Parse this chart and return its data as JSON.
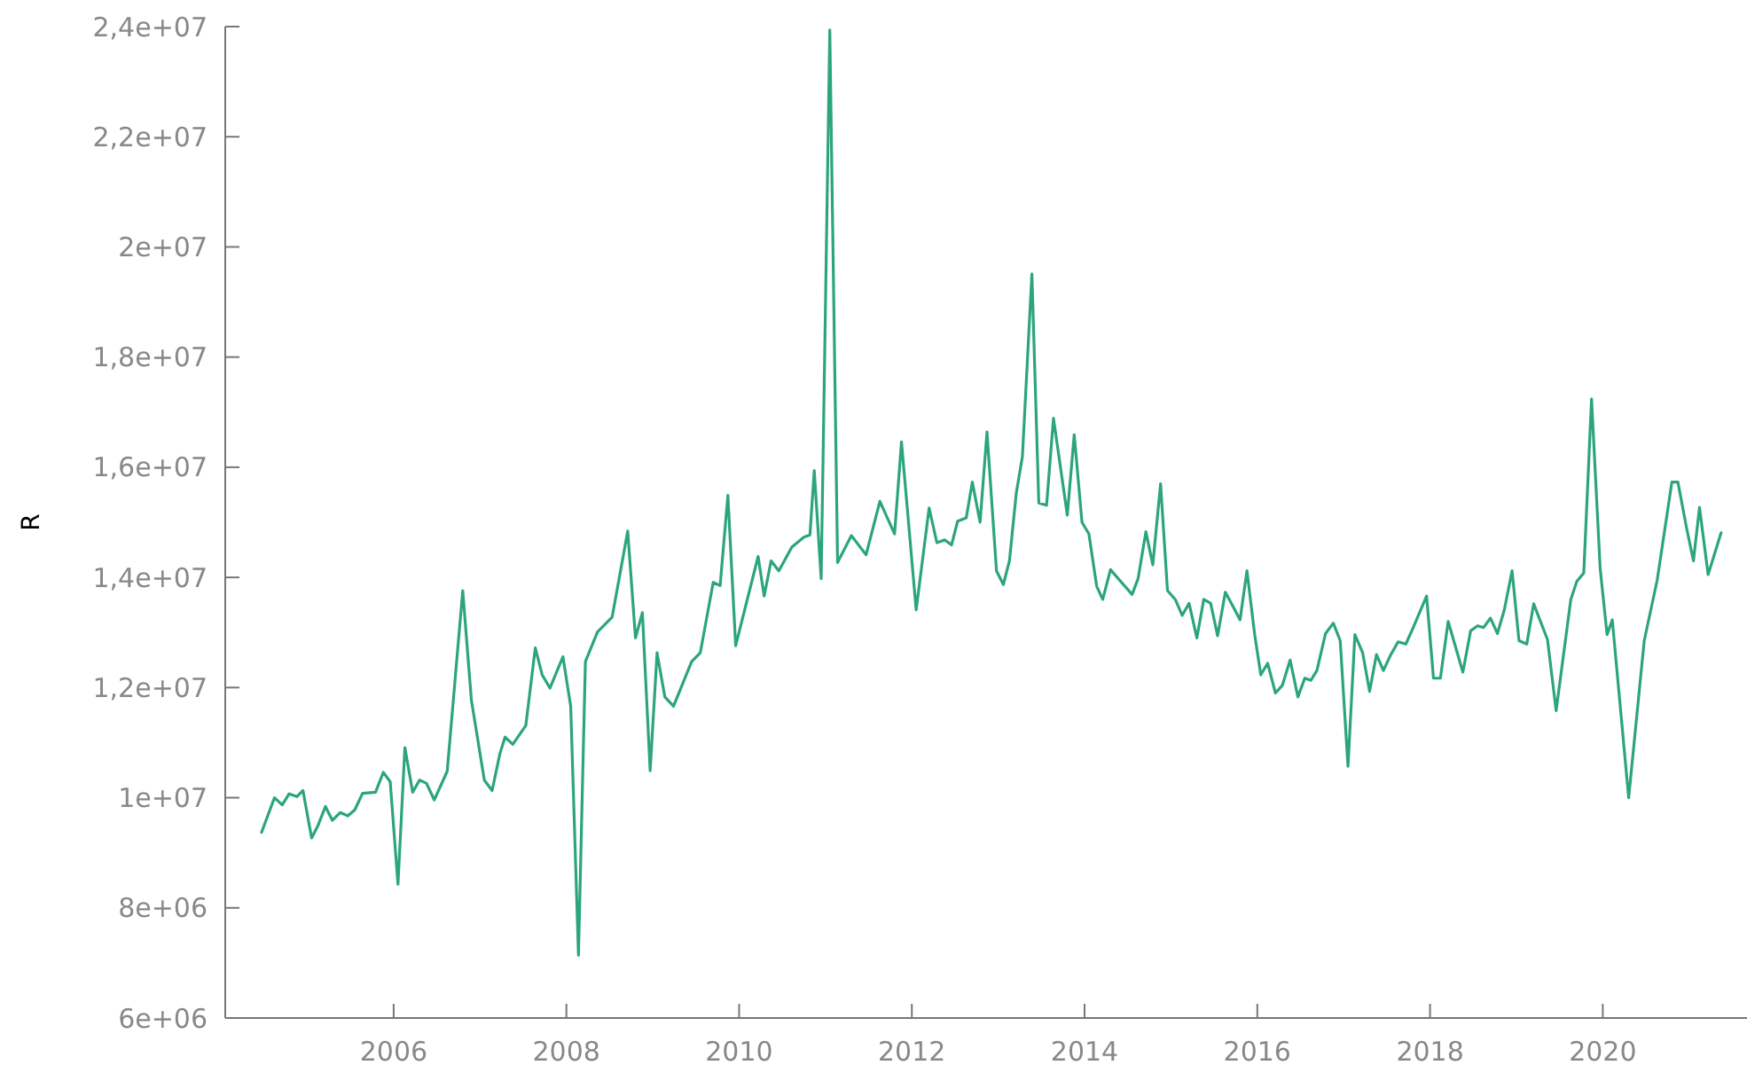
{
  "chart_data": {
    "type": "line",
    "ylabel": "R",
    "x": [
      2004.47,
      2004.62,
      2004.71,
      2004.79,
      2004.88,
      2004.95,
      2005.05,
      2005.12,
      2005.21,
      2005.29,
      2005.38,
      2005.47,
      2005.55,
      2005.64,
      2005.79,
      2005.88,
      2005.96,
      2006.05,
      2006.13,
      2006.22,
      2006.3,
      2006.38,
      2006.47,
      2006.62,
      2006.8,
      2006.9,
      2007.05,
      2007.14,
      2007.23,
      2007.29,
      2007.38,
      2007.53,
      2007.64,
      2007.72,
      2007.81,
      2007.96,
      2008.05,
      2008.14,
      2008.22,
      2008.36,
      2008.53,
      2008.71,
      2008.8,
      2008.88,
      2008.97,
      2009.05,
      2009.14,
      2009.24,
      2009.45,
      2009.55,
      2009.7,
      2009.78,
      2009.87,
      2009.96,
      2010.22,
      2010.29,
      2010.37,
      2010.46,
      2010.61,
      2010.75,
      2010.82,
      2010.87,
      2010.95,
      2011.05,
      2011.14,
      2011.3,
      2011.47,
      2011.63,
      2011.8,
      2011.88,
      2012.05,
      2012.2,
      2012.29,
      2012.38,
      2012.46,
      2012.53,
      2012.63,
      2012.7,
      2012.79,
      2012.87,
      2012.98,
      2013.06,
      2013.13,
      2013.21,
      2013.28,
      2013.39,
      2013.47,
      2013.56,
      2013.64,
      2013.8,
      2013.88,
      2013.97,
      2014.05,
      2014.14,
      2014.21,
      2014.3,
      2014.55,
      2014.62,
      2014.71,
      2014.79,
      2014.88,
      2014.96,
      2015.05,
      2015.13,
      2015.21,
      2015.3,
      2015.38,
      2015.46,
      2015.54,
      2015.63,
      2015.71,
      2015.8,
      2015.88,
      2015.97,
      2016.04,
      2016.12,
      2016.21,
      2016.29,
      2016.38,
      2016.47,
      2016.55,
      2016.62,
      2016.69,
      2016.79,
      2016.88,
      2016.96,
      2017.05,
      2017.13,
      2017.22,
      2017.3,
      2017.38,
      2017.46,
      2017.54,
      2017.63,
      2017.72,
      2017.8,
      2017.96,
      2018.04,
      2018.12,
      2018.21,
      2018.38,
      2018.47,
      2018.55,
      2018.62,
      2018.7,
      2018.78,
      2018.86,
      2018.95,
      2019.03,
      2019.12,
      2019.2,
      2019.36,
      2019.46,
      2019.63,
      2019.7,
      2019.78,
      2019.87,
      2019.97,
      2020.05,
      2020.11,
      2020.3,
      2020.48,
      2020.63,
      2020.8,
      2020.87,
      2020.97,
      2021.05,
      2021.12,
      2021.22,
      2021.37
    ],
    "series": [
      {
        "color": "#2ca57c",
        "values": [
          9370000,
          10000000,
          9870000,
          10070000,
          10020000,
          10130000,
          9270000,
          9480000,
          9840000,
          9590000,
          9730000,
          9670000,
          9780000,
          10080000,
          10100000,
          10460000,
          10290000,
          8430000,
          10910000,
          10100000,
          10320000,
          10260000,
          9960000,
          10480000,
          13760000,
          11770000,
          10320000,
          10130000,
          10800000,
          11100000,
          10970000,
          11310000,
          12720000,
          12230000,
          11990000,
          12560000,
          11660000,
          7140000,
          12470000,
          13010000,
          13280000,
          14840000,
          12900000,
          13360000,
          10490000,
          12630000,
          11830000,
          11660000,
          12470000,
          12630000,
          13910000,
          13850000,
          15490000,
          12760000,
          14380000,
          13660000,
          14300000,
          14120000,
          14550000,
          14730000,
          14770000,
          15940000,
          13980000,
          23940000,
          14270000,
          14760000,
          14410000,
          15380000,
          14790000,
          16460000,
          13410000,
          15260000,
          14630000,
          14680000,
          14590000,
          15020000,
          15080000,
          15730000,
          15000000,
          16640000,
          14120000,
          13870000,
          14300000,
          15540000,
          16190000,
          19510000,
          15350000,
          15310000,
          16890000,
          15130000,
          16590000,
          15000000,
          14790000,
          13840000,
          13600000,
          14140000,
          13690000,
          13980000,
          14830000,
          14230000,
          15700000,
          13760000,
          13600000,
          13310000,
          13530000,
          12900000,
          13600000,
          13530000,
          12940000,
          13730000,
          13500000,
          13230000,
          14120000,
          12960000,
          12230000,
          12440000,
          11900000,
          12040000,
          12500000,
          11830000,
          12170000,
          12130000,
          12310000,
          12980000,
          13170000,
          12850000,
          10570000,
          12960000,
          12630000,
          11930000,
          12600000,
          12310000,
          12580000,
          12830000,
          12790000,
          13070000,
          13660000,
          12170000,
          12170000,
          13200000,
          12280000,
          13030000,
          13120000,
          13090000,
          13260000,
          12980000,
          13410000,
          14120000,
          12850000,
          12790000,
          13520000,
          12870000,
          11580000,
          13600000,
          13930000,
          14080000,
          17240000,
          14160000,
          12960000,
          13230000,
          10000000,
          12850000,
          13950000,
          15730000,
          15730000,
          14900000,
          14300000,
          15270000,
          14050000,
          14810000
        ]
      }
    ],
    "xlim": [
      2004.05,
      2021.67
    ],
    "xticks": [
      2006,
      2008,
      2010,
      2012,
      2014,
      2016,
      2018,
      2020
    ],
    "ylim": [
      6000000,
      24000000
    ],
    "yticks": [
      {
        "value": 6000000,
        "label": "6e+06"
      },
      {
        "value": 8000000,
        "label": "8e+06"
      },
      {
        "value": 10000000,
        "label": "1e+07"
      },
      {
        "value": 12000000,
        "label": "1,2e+07"
      },
      {
        "value": 14000000,
        "label": "1,4e+07"
      },
      {
        "value": 16000000,
        "label": "1,6e+07"
      },
      {
        "value": 18000000,
        "label": "1,8e+07"
      },
      {
        "value": 20000000,
        "label": "2e+07"
      },
      {
        "value": 22000000,
        "label": "2,2e+07"
      },
      {
        "value": 24000000,
        "label": "2,4e+07"
      }
    ],
    "grid": false
  }
}
